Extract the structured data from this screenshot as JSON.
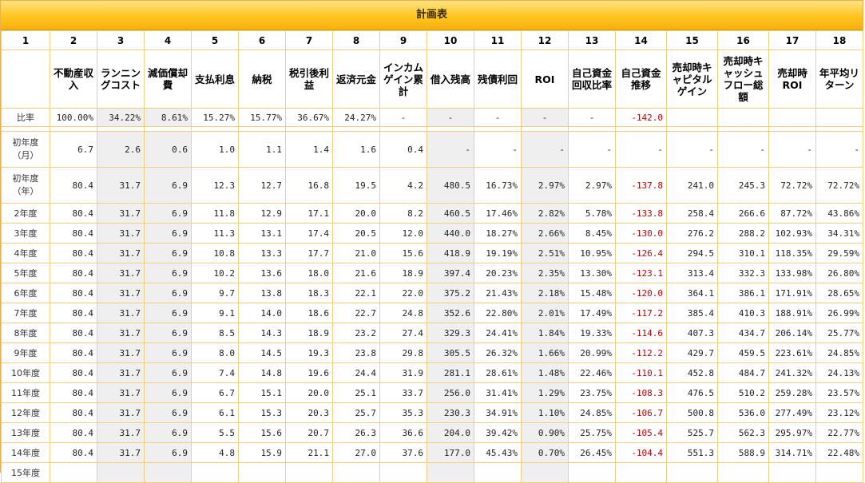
{
  "title": "計画表",
  "colors": {
    "header": "#ffc51e",
    "negative": "#c00000",
    "shade": "#efefef",
    "border": "#f1cf82"
  },
  "column_numbers": [
    "1",
    "2",
    "3",
    "4",
    "5",
    "6",
    "7",
    "8",
    "9",
    "10",
    "11",
    "12",
    "13",
    "14",
    "15",
    "16",
    "17",
    "18"
  ],
  "column_headers": [
    "",
    "不動産収入",
    "ランニングコスト",
    "減価償却費",
    "支払利息",
    "納税",
    "税引後利益",
    "返済元金",
    "インカムゲイン累計",
    "借入残高",
    "残債利回",
    "ROI",
    "自己資金回収比率",
    "自己資金推移",
    "売却時キャピタルゲイン",
    "売却時キャッシュフロー総額",
    "売却時ROI",
    "年平均リターン"
  ],
  "ratio_row": [
    "比率",
    "100.00%",
    "34.22%",
    "8.61%",
    "15.27%",
    "15.77%",
    "36.67%",
    "24.27%",
    "-",
    "-",
    "-",
    "-",
    "-",
    "-142.0",
    "",
    "",
    "",
    ""
  ],
  "rows": [
    [
      "初年度（月）",
      "6.7",
      "2.6",
      "0.6",
      "1.0",
      "1.1",
      "1.4",
      "1.6",
      "0.4",
      "-",
      "-",
      "-",
      "-",
      "-",
      "-",
      "-",
      "-",
      "-"
    ],
    [
      "初年度（年）",
      "80.4",
      "31.7",
      "6.9",
      "12.3",
      "12.7",
      "16.8",
      "19.5",
      "4.2",
      "480.5",
      "16.73%",
      "2.97%",
      "2.97%",
      "-137.8",
      "241.0",
      "245.3",
      "72.72%",
      "72.72%"
    ],
    [
      "2年度",
      "80.4",
      "31.7",
      "6.9",
      "11.8",
      "12.9",
      "17.1",
      "20.0",
      "8.2",
      "460.5",
      "17.46%",
      "2.82%",
      "5.78%",
      "-133.8",
      "258.4",
      "266.6",
      "87.72%",
      "43.86%"
    ],
    [
      "3年度",
      "80.4",
      "31.7",
      "6.9",
      "11.3",
      "13.1",
      "17.4",
      "20.5",
      "12.0",
      "440.0",
      "18.27%",
      "2.66%",
      "8.45%",
      "-130.0",
      "276.2",
      "288.2",
      "102.93%",
      "34.31%"
    ],
    [
      "4年度",
      "80.4",
      "31.7",
      "6.9",
      "10.8",
      "13.3",
      "17.7",
      "21.0",
      "15.6",
      "418.9",
      "19.19%",
      "2.51%",
      "10.95%",
      "-126.4",
      "294.5",
      "310.1",
      "118.35%",
      "29.59%"
    ],
    [
      "5年度",
      "80.4",
      "31.7",
      "6.9",
      "10.2",
      "13.6",
      "18.0",
      "21.6",
      "18.9",
      "397.4",
      "20.23%",
      "2.35%",
      "13.30%",
      "-123.1",
      "313.4",
      "332.3",
      "133.98%",
      "26.80%"
    ],
    [
      "6年度",
      "80.4",
      "31.7",
      "6.9",
      "9.7",
      "13.8",
      "18.3",
      "22.1",
      "22.0",
      "375.2",
      "21.43%",
      "2.18%",
      "15.48%",
      "-120.0",
      "364.1",
      "386.1",
      "171.91%",
      "28.65%"
    ],
    [
      "7年度",
      "80.4",
      "31.7",
      "6.9",
      "9.1",
      "14.0",
      "18.6",
      "22.7",
      "24.8",
      "352.6",
      "22.80%",
      "2.01%",
      "17.49%",
      "-117.2",
      "385.4",
      "410.3",
      "188.91%",
      "26.99%"
    ],
    [
      "8年度",
      "80.4",
      "31.7",
      "6.9",
      "8.5",
      "14.3",
      "18.9",
      "23.2",
      "27.4",
      "329.3",
      "24.41%",
      "1.84%",
      "19.33%",
      "-114.6",
      "407.3",
      "434.7",
      "206.14%",
      "25.77%"
    ],
    [
      "9年度",
      "80.4",
      "31.7",
      "6.9",
      "8.0",
      "14.5",
      "19.3",
      "23.8",
      "29.8",
      "305.5",
      "26.32%",
      "1.66%",
      "20.99%",
      "-112.2",
      "429.7",
      "459.5",
      "223.61%",
      "24.85%"
    ],
    [
      "10年度",
      "80.4",
      "31.7",
      "6.9",
      "7.4",
      "14.8",
      "19.6",
      "24.4",
      "31.9",
      "281.1",
      "28.61%",
      "1.48%",
      "22.46%",
      "-110.1",
      "452.8",
      "484.7",
      "241.32%",
      "24.13%"
    ],
    [
      "11年度",
      "80.4",
      "31.7",
      "6.9",
      "6.7",
      "15.1",
      "20.0",
      "25.1",
      "33.7",
      "256.0",
      "31.41%",
      "1.29%",
      "23.75%",
      "-108.3",
      "476.5",
      "510.2",
      "259.28%",
      "23.57%"
    ],
    [
      "12年度",
      "80.4",
      "31.7",
      "6.9",
      "6.1",
      "15.3",
      "20.3",
      "25.7",
      "35.3",
      "230.3",
      "34.91%",
      "1.10%",
      "24.85%",
      "-106.7",
      "500.8",
      "536.0",
      "277.49%",
      "23.12%"
    ],
    [
      "13年度",
      "80.4",
      "31.7",
      "6.9",
      "5.5",
      "15.6",
      "20.7",
      "26.3",
      "36.6",
      "204.0",
      "39.42%",
      "0.90%",
      "25.75%",
      "-105.4",
      "525.7",
      "562.3",
      "295.97%",
      "22.77%"
    ],
    [
      "14年度",
      "80.4",
      "31.7",
      "6.9",
      "4.8",
      "15.9",
      "21.1",
      "27.0",
      "37.6",
      "177.0",
      "45.43%",
      "0.70%",
      "26.45%",
      "-104.4",
      "551.3",
      "588.9",
      "314.71%",
      "22.48%"
    ],
    [
      "15年度",
      "",
      "",
      "",
      "",
      "",
      "",
      "",
      "",
      "",
      "",
      "",
      "",
      "",
      "",
      "",
      "",
      ""
    ]
  ]
}
